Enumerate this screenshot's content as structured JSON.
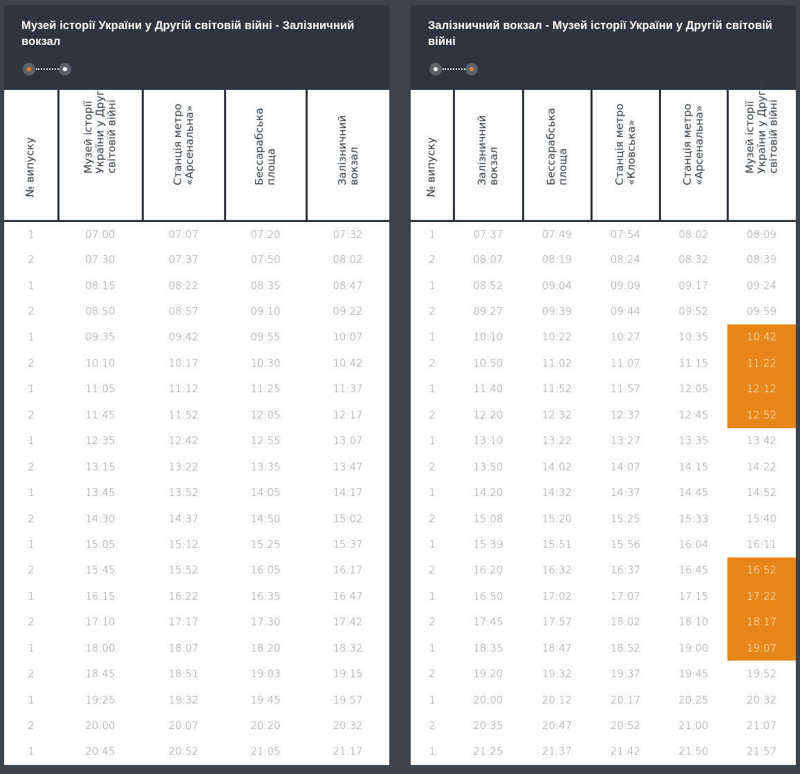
{
  "colors": {
    "background": "#3b434c",
    "header_bg": "#2d3640",
    "accent": "#e8861a",
    "cell_text": "#8b939a"
  },
  "left": {
    "title": "Музей історії України у Другій світовій війні - Залізничний вокзал",
    "columns": [
      [
        "№ випуску"
      ],
      [
        "Музей історії",
        "України у Другій",
        "світовій війні"
      ],
      [
        "Станція метро",
        "«Арсенальна»"
      ],
      [
        "Бессарабська",
        "площа"
      ],
      [
        "Залізничний",
        "вокзал"
      ]
    ],
    "rows": [
      [
        "1",
        "07:00",
        "07:07",
        "07:20",
        "07:32"
      ],
      [
        "2",
        "07:30",
        "07:37",
        "07:50",
        "08:02"
      ],
      [
        "1",
        "08:15",
        "08:22",
        "08:35",
        "08:47"
      ],
      [
        "2",
        "08:50",
        "08:57",
        "09:10",
        "09:22"
      ],
      [
        "1",
        "09:35",
        "09:42",
        "09:55",
        "10:07"
      ],
      [
        "2",
        "10:10",
        "10:17",
        "10:30",
        "10:42"
      ],
      [
        "1",
        "11:05",
        "11:12",
        "11:25",
        "11:37"
      ],
      [
        "2",
        "11:45",
        "11:52",
        "12:05",
        "12:17"
      ],
      [
        "1",
        "12:35",
        "12:42",
        "12:55",
        "13:07"
      ],
      [
        "2",
        "13:15",
        "13:22",
        "13:35",
        "13:47"
      ],
      [
        "1",
        "13:45",
        "13:52",
        "14:05",
        "14:17"
      ],
      [
        "2",
        "14:30",
        "14:37",
        "14:50",
        "15:02"
      ],
      [
        "1",
        "15:05",
        "15:12",
        "15:25",
        "15:37"
      ],
      [
        "2",
        "15:45",
        "15:52",
        "16:05",
        "16:17"
      ],
      [
        "1",
        "16:15",
        "16:22",
        "16:35",
        "16:47"
      ],
      [
        "2",
        "17:10",
        "17:17",
        "17:30",
        "17:42"
      ],
      [
        "1",
        "18:00",
        "18:07",
        "18:20",
        "18:32"
      ],
      [
        "2",
        "18:45",
        "18:51",
        "19:03",
        "19:15"
      ],
      [
        "1",
        "19:25",
        "19:32",
        "19:45",
        "19:57"
      ],
      [
        "2",
        "20:00",
        "20:07",
        "20:20",
        "20:32"
      ],
      [
        "1",
        "20:45",
        "20:52",
        "21:05",
        "21:17"
      ]
    ]
  },
  "right": {
    "title": "Залізничний вокзал - Музей історії України у Другій світовій війні",
    "columns": [
      [
        "№ випуску"
      ],
      [
        "Залізничний",
        "вокзал"
      ],
      [
        "Бессарабська",
        "площа"
      ],
      [
        "Станція метро",
        "«Кловська»"
      ],
      [
        "Станція метро",
        "«Арсенальна»"
      ],
      [
        "Музей історії",
        "України у Другій",
        "світовій війні"
      ]
    ],
    "rows": [
      [
        "1",
        "07:37",
        "07:49",
        "07:54",
        "08:02",
        "08:09"
      ],
      [
        "2",
        "08:07",
        "08:19",
        "08:24",
        "08:32",
        "08:39"
      ],
      [
        "1",
        "08:52",
        "09:04",
        "09:09",
        "09:17",
        "09:24"
      ],
      [
        "2",
        "09:27",
        "09:39",
        "09:44",
        "09:52",
        "09:59"
      ],
      [
        "1",
        "10:10",
        "10:22",
        "10:27",
        "10:35",
        "10:42"
      ],
      [
        "2",
        "10:50",
        "11:02",
        "11:07",
        "11:15",
        "11:22"
      ],
      [
        "1",
        "11:40",
        "11:52",
        "11:57",
        "12:05",
        "12:12"
      ],
      [
        "2",
        "12:20",
        "12:32",
        "12:37",
        "12:45",
        "12:52"
      ],
      [
        "1",
        "13:10",
        "13:22",
        "13:27",
        "13:35",
        "13:42"
      ],
      [
        "2",
        "13:50",
        "14:02",
        "14:07",
        "14:15",
        "14:22"
      ],
      [
        "1",
        "14:20",
        "14:32",
        "14:37",
        "14:45",
        "14:52"
      ],
      [
        "2",
        "15:08",
        "15:20",
        "15:25",
        "15:33",
        "15:40"
      ],
      [
        "1",
        "15:39",
        "15:51",
        "15:56",
        "16:04",
        "16:11"
      ],
      [
        "2",
        "16:20",
        "16:32",
        "16:37",
        "16:45",
        "16:52"
      ],
      [
        "1",
        "16:50",
        "17:02",
        "17:07",
        "17:15",
        "17:22"
      ],
      [
        "2",
        "17:45",
        "17:57",
        "18:02",
        "18:10",
        "18:17"
      ],
      [
        "1",
        "18:35",
        "18:47",
        "18:52",
        "19:00",
        "19:07"
      ],
      [
        "2",
        "19:20",
        "19:32",
        "19:37",
        "19:45",
        "19:52"
      ],
      [
        "1",
        "20:00",
        "20:12",
        "20:17",
        "20:25",
        "20:32"
      ],
      [
        "2",
        "20:35",
        "20:47",
        "20:52",
        "21:00",
        "21:07"
      ],
      [
        "1",
        "21:25",
        "21:37",
        "21:42",
        "21:50",
        "21:57"
      ]
    ],
    "highlighted_rows": [
      4,
      5,
      6,
      7,
      13,
      14,
      15,
      16
    ],
    "highlighted_column": 5
  }
}
